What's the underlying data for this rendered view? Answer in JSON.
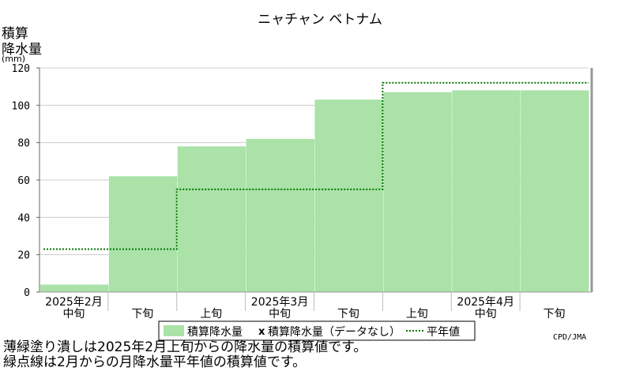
{
  "chart_data": {
    "type": "area",
    "title": "ニャチャン ベトナム",
    "ylabel_lines": [
      "積算",
      "降水量",
      "(mm)"
    ],
    "ylim": [
      0,
      120
    ],
    "yticks": [
      0,
      20,
      40,
      60,
      80,
      100,
      120
    ],
    "periods": [
      "2025年2月中旬",
      "2025年2月下旬",
      "2025年3月上旬",
      "2025年3月中旬",
      "2025年3月下旬",
      "2025年4月上旬",
      "2025年4月中旬",
      "2025年4月下旬"
    ],
    "xaxis_dekads": [
      "中旬",
      "下旬",
      "上旬",
      "中旬",
      "下旬",
      "上旬",
      "中旬",
      "下旬"
    ],
    "xaxis_months": [
      {
        "label": "2025年2月",
        "dekad_index": 0
      },
      {
        "label": "2025年3月",
        "dekad_index": 3
      },
      {
        "label": "2025年4月",
        "dekad_index": 6
      }
    ],
    "observed_steps": [
      4,
      62,
      78,
      82,
      103,
      107,
      108,
      108
    ],
    "normal_steps": [
      23,
      23,
      55,
      55,
      55,
      112,
      112,
      112
    ],
    "series": [
      {
        "name": "積算降水量",
        "style": "filled",
        "color": "#aae2a8"
      },
      {
        "name": "積算降水量（データなし）",
        "style": "marker-x"
      },
      {
        "name": "平年値",
        "style": "dotted",
        "color": "#007700"
      }
    ],
    "credit": "CPD/JMA",
    "grid": true,
    "legend_placement": "bottom"
  },
  "notes": [
    "薄緑塗り潰しは2025年2月上旬からの降水量の積算値です。",
    "緑点線は2月からの月降水量平年値の積算値です。"
  ]
}
